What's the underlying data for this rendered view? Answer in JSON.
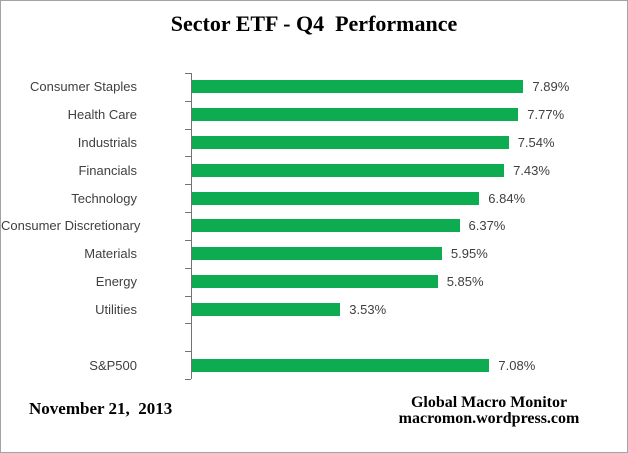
{
  "title": "Sector ETF - Q4  Performance",
  "chart_data": {
    "type": "bar",
    "orientation": "horizontal",
    "title": "Sector ETF - Q4  Performance",
    "categories": [
      "Consumer Staples",
      "Health Care",
      "Industrials",
      "Financials",
      "Technology",
      "Consumer Discretionary",
      "Materials",
      "Energy",
      "Utilities",
      "S&P500"
    ],
    "values": [
      7.89,
      7.77,
      7.54,
      7.43,
      6.84,
      6.37,
      5.95,
      5.85,
      3.53,
      7.08
    ],
    "value_labels": [
      "7.89%",
      "7.77%",
      "7.54%",
      "7.43%",
      "6.84%",
      "6.37%",
      "5.95%",
      "5.85%",
      "3.53%",
      "7.08%"
    ],
    "gap_before_last": true,
    "axis_range": [
      0,
      8
    ],
    "bar_color": "#0EAC51",
    "axis_color": "#737373",
    "label_color": "#404040",
    "grid": "off",
    "legend": "none"
  },
  "footer": {
    "date": "November 21,  2013",
    "credit_line1": "Global Macro Monitor",
    "credit_line2": "macromon.wordpress.com"
  }
}
